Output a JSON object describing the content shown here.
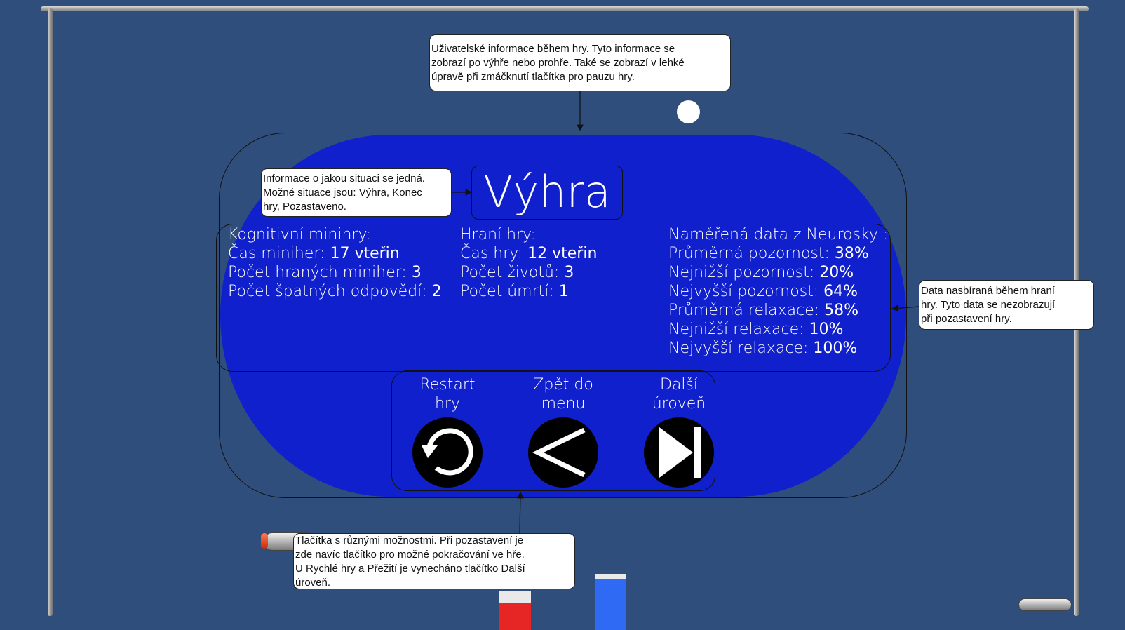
{
  "notes": {
    "top": [
      "Uživatelské informace během hry. Tyto informace se",
      "zobrazí po výhře nebo prohře. Také se zobrazí v lehké",
      "úpravě při zmáčknutí tlačítka pro pauzu hry."
    ],
    "left": [
      "Informace o jakou situaci se jedná.",
      "Možné situace jsou: Výhra, Konec",
      "hry, Pozastaveno."
    ],
    "right": [
      "Data nasbíraná během hraní",
      "hry. Tyto data se nezobrazují",
      "při pozastavení hry."
    ],
    "bottom": [
      "Tlačítka s různými možnostmi. Při pozastavení je",
      "zde navíc tlačítko pro možné pokračování ve hře.",
      "U Rychlé hry a Přežití je vynecháno tlačítko Další",
      "úroveň."
    ]
  },
  "panel": {
    "title": "Výhra",
    "cognitive": {
      "heading": "Kognitivní minihry:",
      "rows": [
        {
          "label": "Čas miniher: ",
          "value": "17 vteřin"
        },
        {
          "label": "Počet hraných miniher: ",
          "value": "3"
        },
        {
          "label": "Počet špatných odpovědí: ",
          "value": "2"
        }
      ]
    },
    "gameplay": {
      "heading": "Hraní hry:",
      "rows": [
        {
          "label": "Čas hry: ",
          "value": "12 vteřin"
        },
        {
          "label": "Počet životů: ",
          "value": "3"
        },
        {
          "label": "Počet úmrtí: ",
          "value": "1"
        }
      ]
    },
    "neurosky": {
      "heading": "Naměřená data z Neurosky :",
      "rows": [
        {
          "label": "Průměrná pozornost: ",
          "value": "38%"
        },
        {
          "label": "Nejnižší pozornost: ",
          "value": "20%"
        },
        {
          "label": "Nejvyšší pozornost: ",
          "value": "64%"
        },
        {
          "label": "Průměrná relaxace: ",
          "value": "58%"
        },
        {
          "label": "Nejnižší relaxace: ",
          "value": "10%"
        },
        {
          "label": "Nejvyšší relaxace: ",
          "value": "100%"
        }
      ]
    },
    "buttons": {
      "restart": [
        "Restart",
        "hry"
      ],
      "menu": [
        "Zpět do",
        "menu"
      ],
      "next": [
        "Další",
        "úroveň"
      ]
    }
  },
  "colors": {
    "background": "#2f4e7c",
    "panel": "#1020cc"
  }
}
